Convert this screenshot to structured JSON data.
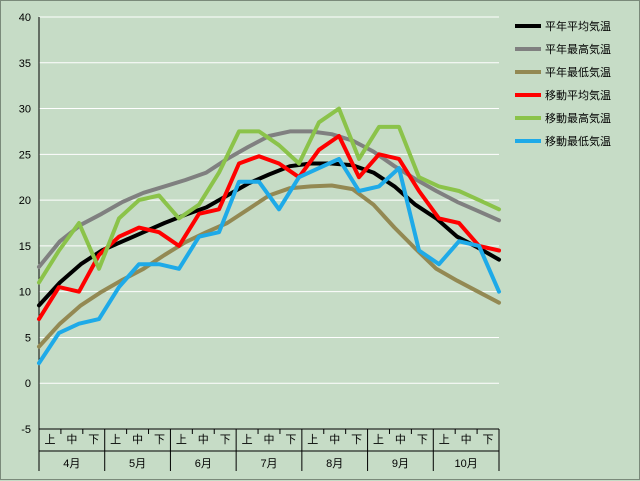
{
  "chart_data": {
    "type": "line",
    "title": "",
    "xlabel": "",
    "ylabel": "",
    "ylim": [
      -5,
      40
    ],
    "yticks": [
      "40",
      "35",
      "30",
      "25",
      "20",
      "15",
      "10",
      "5",
      "0",
      "-5"
    ],
    "months": [
      "4月",
      "5月",
      "6月",
      "7月",
      "8月",
      "9月",
      "10月"
    ],
    "decades": [
      "上",
      "中",
      "下"
    ],
    "legend_position": "right",
    "series": [
      {
        "name": "平年平均気温",
        "color": "#000000",
        "key": "s0",
        "values": [
          8.5,
          11.0,
          13.0,
          14.5,
          15.5,
          16.5,
          17.5,
          18.4,
          19.2,
          20.5,
          21.8,
          22.8,
          23.7,
          24.0,
          24.0,
          23.8,
          23.0,
          21.5,
          19.5,
          18.0,
          16.0,
          14.8,
          13.5
        ]
      },
      {
        "name": "平年最高気温",
        "color": "#808080",
        "key": "s1",
        "values": [
          12.7,
          15.5,
          17.3,
          18.5,
          19.8,
          20.8,
          21.5,
          22.2,
          23.0,
          24.5,
          25.8,
          27.0,
          27.5,
          27.5,
          27.2,
          26.5,
          25.3,
          23.7,
          22.3,
          21.0,
          19.8,
          18.8,
          17.8
        ]
      },
      {
        "name": "平年最低気温",
        "color": "#938953",
        "key": "s2",
        "values": [
          4.0,
          6.5,
          8.5,
          10.0,
          11.3,
          12.5,
          14.0,
          15.4,
          16.5,
          17.5,
          19.0,
          20.5,
          21.3,
          21.5,
          21.6,
          21.2,
          19.5,
          17.0,
          14.7,
          12.5,
          11.2,
          10.0,
          8.8
        ]
      },
      {
        "name": "移動平均気温",
        "color": "#ff0000",
        "key": "s3",
        "values": [
          7.0,
          10.5,
          10.0,
          14.0,
          16.0,
          17.0,
          16.5,
          15.0,
          18.5,
          19.0,
          24.0,
          24.8,
          24.0,
          22.5,
          25.5,
          27.0,
          22.5,
          25.0,
          24.5,
          21.0,
          18.0,
          17.5,
          15.0,
          14.5
        ]
      },
      {
        "name": "移動最高気温",
        "color": "#8bc34a",
        "key": "s4",
        "values": [
          11.0,
          14.5,
          17.5,
          12.5,
          18.0,
          20.0,
          20.5,
          18.0,
          19.5,
          23.0,
          27.5,
          27.5,
          26.0,
          24.0,
          28.5,
          30.0,
          24.5,
          28.0,
          28.0,
          22.5,
          21.5,
          21.0,
          20.0,
          19.0
        ]
      },
      {
        "name": "移動最低気温",
        "color": "#1eaae8",
        "key": "s5",
        "values": [
          2.2,
          5.5,
          6.5,
          7.0,
          10.5,
          13.0,
          13.0,
          12.5,
          16.0,
          16.5,
          22.0,
          22.0,
          19.0,
          22.5,
          23.5,
          24.5,
          21.0,
          21.5,
          23.5,
          14.5,
          13.0,
          15.5,
          15.0,
          10.0
        ]
      }
    ]
  }
}
